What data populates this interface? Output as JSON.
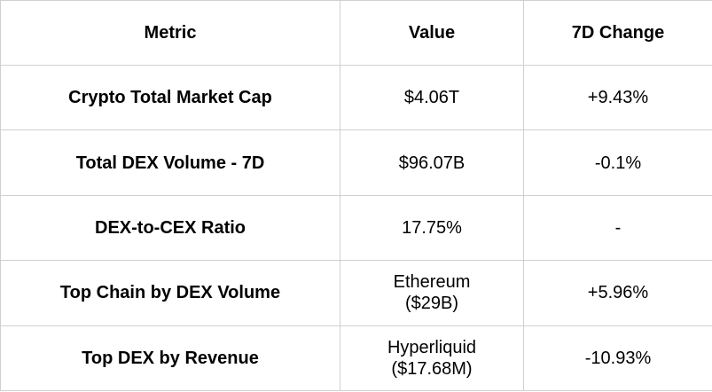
{
  "table": {
    "headers": {
      "metric": "Metric",
      "value": "Value",
      "change": "7D Change"
    },
    "rows": [
      {
        "metric": "Crypto Total Market Cap",
        "value_lines": [
          "$4.06T"
        ],
        "change": "+9.43%"
      },
      {
        "metric": "Total DEX Volume - 7D",
        "value_lines": [
          "$96.07B"
        ],
        "change": "-0.1%"
      },
      {
        "metric": "DEX-to-CEX Ratio",
        "value_lines": [
          "17.75%"
        ],
        "change": "-"
      },
      {
        "metric": "Top Chain by DEX Volume",
        "value_lines": [
          "Ethereum",
          "($29B)"
        ],
        "change": "+5.96%"
      },
      {
        "metric": "Top DEX by Revenue",
        "value_lines": [
          "Hyperliquid",
          "($17.68M)"
        ],
        "change": "-10.93%"
      }
    ]
  }
}
